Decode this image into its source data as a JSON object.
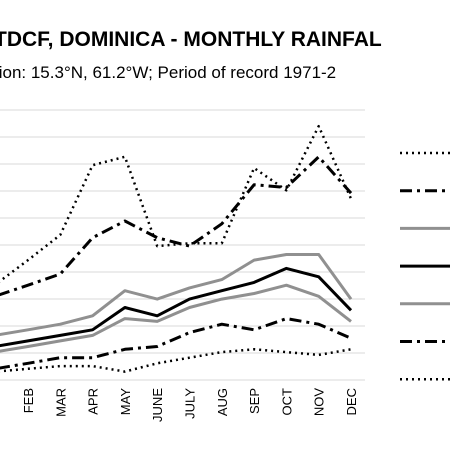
{
  "chart_data": {
    "type": "line",
    "title": "TDCF, DOMINICA - MONTHLY RAINFAL",
    "subtitle": "tion: 15.3°N, 61.2°W; Period of record 1971-2",
    "categories": [
      "FEB",
      "MAR",
      "APR",
      "MAY",
      "JUNE",
      "JULY",
      "AUG",
      "SEP",
      "OCT",
      "NOV",
      "DEC"
    ],
    "ylim": [
      0,
      9.5
    ],
    "grid": true,
    "legend": "right",
    "series": [
      {
        "values": [
          4.3,
          5.2,
          7.7,
          8.0,
          4.8,
          4.9,
          4.9,
          7.6,
          6.8,
          9.1,
          6.5
        ],
        "color": "#000000",
        "style": "dotted",
        "width": 2.5
      },
      {
        "values": [
          3.4,
          3.8,
          5.1,
          5.7,
          5.1,
          4.8,
          5.6,
          7.0,
          6.9,
          8.0,
          6.7
        ],
        "color": "#000000",
        "style": "dashdot",
        "width": 3
      },
      {
        "values": [
          1.8,
          2.0,
          2.3,
          3.2,
          2.9,
          3.3,
          3.6,
          4.3,
          4.5,
          4.5,
          2.9
        ],
        "color": "#909090",
        "style": "solid",
        "width": 3
      },
      {
        "values": [
          1.4,
          1.6,
          1.8,
          2.6,
          2.3,
          2.9,
          3.2,
          3.5,
          4.0,
          3.7,
          2.5
        ],
        "color": "#000000",
        "style": "solid",
        "width": 3
      },
      {
        "values": [
          1.2,
          1.4,
          1.6,
          2.2,
          2.1,
          2.6,
          2.9,
          3.1,
          3.4,
          3.0,
          2.1
        ],
        "color": "#909090",
        "style": "solid",
        "width": 3
      },
      {
        "values": [
          0.6,
          0.8,
          0.8,
          1.1,
          1.2,
          1.7,
          2.0,
          1.8,
          2.2,
          2.0,
          1.5
        ],
        "color": "#000000",
        "style": "dashdot",
        "width": 3
      },
      {
        "values": [
          0.4,
          0.5,
          0.5,
          0.3,
          0.6,
          0.8,
          1.0,
          1.1,
          1.0,
          0.9,
          1.1
        ],
        "color": "#000000",
        "style": "dotted",
        "width": 2.5
      }
    ]
  }
}
